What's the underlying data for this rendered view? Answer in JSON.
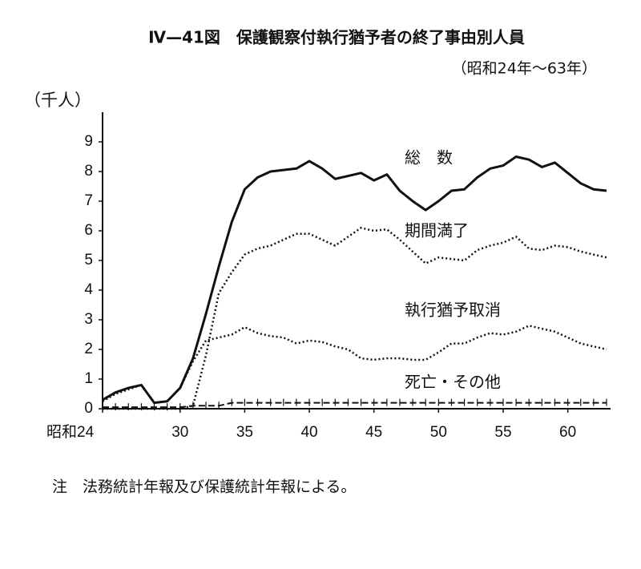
{
  "chart_data": {
    "type": "line",
    "title": "Ⅳ—41図　保護観察付執行猶予者の終了事由別人員",
    "subtitle": "（昭和24年～63年）",
    "y_label": "（千人）",
    "note": "注　法務統計年報及び保護統計年報による。",
    "x": [
      24,
      25,
      26,
      27,
      28,
      29,
      30,
      31,
      32,
      33,
      34,
      35,
      36,
      37,
      38,
      39,
      40,
      41,
      42,
      43,
      44,
      45,
      46,
      47,
      48,
      49,
      50,
      51,
      52,
      53,
      54,
      55,
      56,
      57,
      58,
      59,
      60,
      61,
      62,
      63
    ],
    "xlim": [
      24,
      63
    ],
    "xticks": [
      {
        "value": 24,
        "label": "昭和24"
      },
      30,
      35,
      40,
      45,
      50,
      55,
      60
    ],
    "ylim": [
      0,
      10
    ],
    "yticks": [
      0,
      1,
      2,
      3,
      4,
      5,
      6,
      7,
      8,
      9
    ],
    "series": [
      {
        "name": "総　数",
        "color": "#111111",
        "style": "solid",
        "values": [
          0.3,
          0.55,
          0.7,
          0.8,
          0.2,
          0.25,
          0.7,
          1.7,
          3.2,
          4.8,
          6.3,
          7.4,
          7.8,
          8.0,
          8.05,
          8.1,
          8.35,
          8.1,
          7.75,
          7.85,
          7.95,
          7.7,
          7.9,
          7.35,
          7.0,
          6.7,
          7.0,
          7.35,
          7.4,
          7.8,
          8.1,
          8.2,
          8.5,
          8.4,
          8.15,
          8.3,
          7.95,
          7.6,
          7.4,
          7.35
        ]
      },
      {
        "name": "期間満了",
        "color": "#111111",
        "style": "dotted",
        "values": [
          0,
          0,
          0,
          0,
          0,
          0,
          0,
          0.1,
          1.8,
          3.9,
          4.6,
          5.2,
          5.4,
          5.5,
          5.7,
          5.9,
          5.9,
          5.7,
          5.5,
          5.8,
          6.1,
          6.0,
          6.05,
          5.7,
          5.3,
          4.9,
          5.1,
          5.05,
          5.0,
          5.35,
          5.5,
          5.6,
          5.8,
          5.4,
          5.35,
          5.5,
          5.45,
          5.3,
          5.2,
          5.1
        ]
      },
      {
        "name": "執行猶予取消",
        "color": "#111111",
        "style": "dotted",
        "values": [
          0.25,
          0.5,
          0.65,
          0.8,
          0.2,
          0.25,
          0.7,
          1.6,
          2.3,
          2.4,
          2.5,
          2.75,
          2.55,
          2.45,
          2.4,
          2.2,
          2.3,
          2.25,
          2.1,
          2.0,
          1.7,
          1.65,
          1.7,
          1.7,
          1.65,
          1.65,
          1.9,
          2.2,
          2.2,
          2.4,
          2.55,
          2.5,
          2.6,
          2.8,
          2.7,
          2.6,
          2.4,
          2.2,
          2.1,
          2.0
        ]
      },
      {
        "name": "死亡・その他",
        "color": "#111111",
        "style": "dashed",
        "values": [
          0.05,
          0.05,
          0.05,
          0.05,
          0.05,
          0.05,
          0.05,
          0.1,
          0.1,
          0.1,
          0.2,
          0.2,
          0.2,
          0.2,
          0.2,
          0.2,
          0.2,
          0.2,
          0.2,
          0.2,
          0.2,
          0.2,
          0.2,
          0.2,
          0.2,
          0.2,
          0.2,
          0.2,
          0.2,
          0.2,
          0.2,
          0.2,
          0.2,
          0.2,
          0.2,
          0.2,
          0.2,
          0.2,
          0.2,
          0.2
        ]
      }
    ]
  }
}
